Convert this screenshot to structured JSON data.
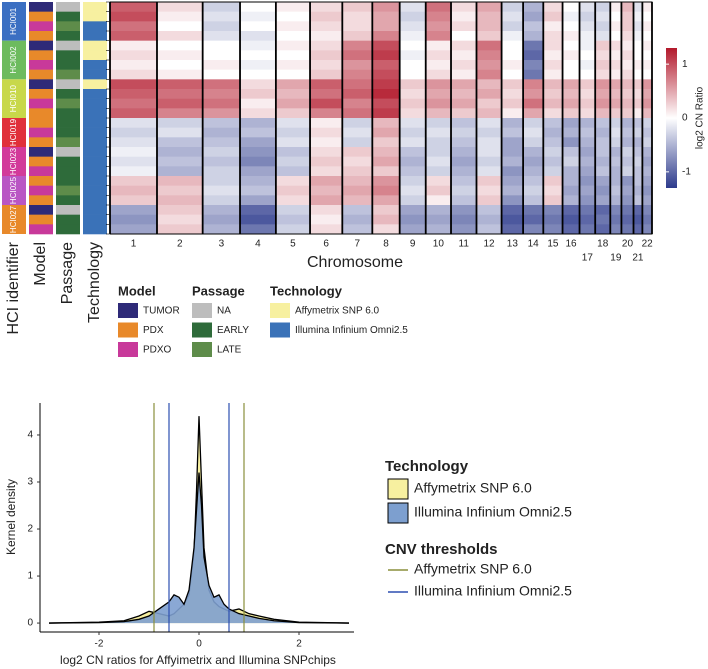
{
  "chart_data": [
    {
      "type": "heatmap",
      "x_label": "Chromosome",
      "chromosomes": [
        "1",
        "2",
        "3",
        "4",
        "5",
        "6",
        "7",
        "8",
        "9",
        "10",
        "11",
        "12",
        "13",
        "14",
        "15",
        "16",
        "17",
        "18",
        "19",
        "20",
        "21",
        "22"
      ],
      "chromosome_sizes": [
        249,
        242,
        198,
        190,
        181,
        171,
        159,
        145,
        138,
        134,
        135,
        133,
        114,
        107,
        102,
        90,
        83,
        80,
        59,
        64,
        47,
        51
      ],
      "annotation_titles": [
        "HCI identifier",
        "Model",
        "Passage",
        "Technology"
      ],
      "groups": [
        {
          "label": "HCI001",
          "color": "#3b6fc2",
          "rows": 4
        },
        {
          "label": "HCI002",
          "color": "#6dbb5e",
          "rows": 4
        },
        {
          "label": "HCI010",
          "color": "#c8d84a",
          "rows": 4
        },
        {
          "label": "HCI019",
          "color": "#e0303a",
          "rows": 3
        },
        {
          "label": "HCI023",
          "color": "#d23a9a",
          "rows": 3
        },
        {
          "label": "HCI025",
          "color": "#b956c4",
          "rows": 3
        },
        {
          "label": "HCI027",
          "color": "#e8892a",
          "rows": 3
        }
      ],
      "row_model": [
        "TUMOR",
        "PDX",
        "PDXO",
        "PDX",
        "TUMOR",
        "PDX",
        "PDXO",
        "PDX",
        "TUMOR",
        "PDX",
        "PDXO",
        "PDX",
        "PDX",
        "PDXO",
        "PDX",
        "TUMOR",
        "PDX",
        "PDXO",
        "PDX",
        "PDXO",
        "PDX",
        "TUMOR",
        "PDX",
        "PDXO"
      ],
      "row_passage": [
        "NA",
        "EARLY",
        "LATE",
        "EARLY",
        "NA",
        "EARLY",
        "EARLY",
        "LATE",
        "NA",
        "EARLY",
        "LATE",
        "EARLY",
        "EARLY",
        "EARLY",
        "LATE",
        "NA",
        "EARLY",
        "EARLY",
        "EARLY",
        "LATE",
        "EARLY",
        "NA",
        "EARLY",
        "EARLY"
      ],
      "row_technology": [
        "Affymetrix SNP 6.0",
        "Affymetrix SNP 6.0",
        "Illumina Infinium Omni2.5",
        "Illumina Infinium Omni2.5",
        "Affymetrix SNP 6.0",
        "Affymetrix SNP 6.0",
        "Illumina Infinium Omni2.5",
        "Illumina Infinium Omni2.5",
        "Affymetrix SNP 6.0",
        "Illumina Infinium Omni2.5",
        "Illumina Infinium Omni2.5",
        "Illumina Infinium Omni2.5",
        "Illumina Infinium Omni2.5",
        "Illumina Infinium Omni2.5",
        "Illumina Infinium Omni2.5",
        "Illumina Infinium Omni2.5",
        "Illumina Infinium Omni2.5",
        "Illumina Infinium Omni2.5",
        "Illumina Infinium Omni2.5",
        "Illumina Infinium Omni2.5",
        "Illumina Infinium Omni2.5",
        "Illumina Infinium Omni2.5",
        "Illumina Infinium Omni2.5",
        "Illumina Infinium Omni2.5"
      ],
      "values": [
        [
          0.9,
          0.2,
          -0.3,
          0,
          0.1,
          0.2,
          0.3,
          0.6,
          -0.2,
          0.8,
          0.2,
          0.5,
          -0.3,
          -0.5,
          0.2,
          0,
          -0.2,
          -0.3,
          0.1,
          0.4,
          -0.2,
          0.1
        ],
        [
          1.0,
          0.1,
          -0.2,
          -0.1,
          0,
          0.3,
          0.2,
          0.5,
          -0.3,
          0.7,
          0.1,
          0.4,
          -0.2,
          -0.6,
          0.3,
          -0.1,
          -0.3,
          -0.2,
          0,
          0.3,
          -0.1,
          0
        ],
        [
          0.8,
          0,
          -0.3,
          0,
          0.1,
          0.2,
          0.2,
          0.5,
          -0.2,
          0.6,
          0.2,
          0.4,
          -0.3,
          -0.4,
          0.1,
          0,
          -0.2,
          -0.3,
          0.1,
          0.3,
          -0.2,
          0.1
        ],
        [
          0.9,
          0.2,
          -0.2,
          -0.2,
          0,
          0.1,
          0.3,
          0.7,
          -0.1,
          0.7,
          0,
          0.3,
          -0.1,
          -0.5,
          0.2,
          0.1,
          -0.1,
          -0.2,
          0,
          0.2,
          -0.1,
          0
        ],
        [
          0.1,
          0,
          0,
          -0.1,
          0.1,
          0.2,
          0.7,
          1.0,
          0,
          0.1,
          0.2,
          0.8,
          0,
          -0.9,
          0.2,
          0,
          -0.1,
          0.3,
          0.2,
          0.1,
          0,
          0.1
        ],
        [
          0.2,
          0.1,
          0,
          0,
          0,
          0.3,
          0.8,
          1.1,
          -0.1,
          0.2,
          0.1,
          0.7,
          0,
          -1.0,
          0.1,
          0.1,
          0,
          0.2,
          0.1,
          0.2,
          0,
          0
        ],
        [
          0.1,
          0,
          0.1,
          -0.1,
          0.1,
          0.2,
          0.6,
          0.9,
          0,
          0.1,
          0.2,
          0.6,
          0.1,
          -0.8,
          0.2,
          0,
          -0.1,
          0.3,
          0.2,
          0.1,
          0.1,
          0.1
        ],
        [
          0.2,
          0.1,
          0,
          0,
          0,
          0.3,
          0.7,
          1.0,
          0,
          0.2,
          0.1,
          0.7,
          0,
          -0.9,
          0.1,
          0,
          0,
          0.2,
          0.1,
          0.2,
          0,
          0
        ],
        [
          1.0,
          0.9,
          0.8,
          0.2,
          0.5,
          0.9,
          0.8,
          1.1,
          0.3,
          0.6,
          0.5,
          0.4,
          0.3,
          0.7,
          0.4,
          0.5,
          0.3,
          0.6,
          0.5,
          0.4,
          0.3,
          0.6
        ],
        [
          0.9,
          0.8,
          0.7,
          0.3,
          0.4,
          0.8,
          0.9,
          1.2,
          0.2,
          0.5,
          0.4,
          0.5,
          0.2,
          0.6,
          0.3,
          0.4,
          0.2,
          0.5,
          0.4,
          0.3,
          0.2,
          0.5
        ],
        [
          0.8,
          0.9,
          0.8,
          0.1,
          0.5,
          1.0,
          0.7,
          1.0,
          0.3,
          0.6,
          0.5,
          0.3,
          0.3,
          0.8,
          0.4,
          0.5,
          0.3,
          0.6,
          0.5,
          0.4,
          0.3,
          0.6
        ],
        [
          0.9,
          0.7,
          0.6,
          0.2,
          0.3,
          0.7,
          0.8,
          1.1,
          0.2,
          0.4,
          0.3,
          0.4,
          0.1,
          0.5,
          0.2,
          0.3,
          0.2,
          0.4,
          0.3,
          0.3,
          0.1,
          0.4
        ],
        [
          -0.2,
          -0.3,
          -0.4,
          -0.5,
          -0.2,
          0.1,
          -0.3,
          0.4,
          -0.2,
          -0.3,
          -0.4,
          -0.2,
          -0.5,
          -0.3,
          -0.4,
          -0.6,
          -0.5,
          -0.4,
          -0.3,
          -0.5,
          -0.4,
          -0.3
        ],
        [
          -0.3,
          -0.2,
          -0.5,
          -0.4,
          -0.3,
          0.2,
          -0.2,
          0.5,
          -0.3,
          -0.2,
          -0.3,
          -0.3,
          -0.4,
          -0.2,
          -0.5,
          -0.5,
          -0.4,
          -0.5,
          -0.2,
          -0.4,
          -0.3,
          -0.4
        ],
        [
          -0.2,
          -0.4,
          -0.4,
          -0.6,
          -0.2,
          0.1,
          -0.3,
          0.3,
          -0.2,
          -0.3,
          -0.4,
          -0.2,
          -0.6,
          -0.3,
          -0.4,
          -0.7,
          -0.5,
          -0.4,
          -0.3,
          -0.5,
          -0.5,
          -0.3
        ],
        [
          -0.1,
          -0.5,
          -0.3,
          -0.7,
          -0.4,
          0.2,
          0.3,
          0.4,
          -0.4,
          -0.3,
          -0.5,
          -0.2,
          -0.6,
          -0.5,
          -0.3,
          -0.4,
          -0.6,
          -0.4,
          -0.5,
          -0.3,
          -0.4,
          -0.5
        ],
        [
          -0.2,
          -0.4,
          -0.4,
          -0.8,
          -0.3,
          0.3,
          0.2,
          0.5,
          -0.5,
          -0.2,
          -0.6,
          -0.3,
          -0.5,
          -0.6,
          -0.4,
          -0.3,
          -0.5,
          -0.5,
          -0.4,
          -0.4,
          -0.3,
          -0.6
        ],
        [
          -0.1,
          -0.5,
          -0.3,
          -0.6,
          -0.4,
          0.2,
          0.3,
          0.3,
          -0.4,
          -0.3,
          -0.5,
          -0.2,
          -0.7,
          -0.5,
          -0.3,
          -0.5,
          -0.6,
          -0.4,
          -0.5,
          -0.3,
          -0.4,
          -0.5
        ],
        [
          0.3,
          0.4,
          -0.3,
          -0.5,
          0.2,
          0.5,
          0.4,
          0.6,
          -0.3,
          0.2,
          -0.4,
          0.3,
          -0.6,
          -0.4,
          0.3,
          -0.5,
          -0.7,
          -0.6,
          -0.5,
          -0.7,
          -0.4,
          -0.6
        ],
        [
          0.4,
          0.3,
          -0.2,
          -0.4,
          0.3,
          0.4,
          0.5,
          0.7,
          -0.2,
          0.3,
          -0.3,
          0.2,
          -0.5,
          -0.3,
          0.2,
          -0.6,
          -0.6,
          -0.7,
          -0.4,
          -0.6,
          -0.5,
          -0.7
        ],
        [
          0.3,
          0.4,
          -0.3,
          -0.6,
          0.2,
          0.5,
          0.4,
          0.5,
          -0.3,
          0.1,
          -0.4,
          0.3,
          -0.7,
          -0.4,
          0.3,
          -0.5,
          -0.7,
          -0.6,
          -0.5,
          -0.7,
          -0.4,
          -0.6
        ],
        [
          -0.6,
          0.3,
          -0.5,
          -1.0,
          -0.3,
          0.2,
          -0.4,
          0.3,
          -0.6,
          -0.5,
          -0.7,
          -0.4,
          -1.0,
          -0.9,
          -0.8,
          -1.0,
          -0.9,
          -1.0,
          -0.8,
          -0.9,
          -1.0,
          -0.8
        ],
        [
          -0.7,
          0.2,
          -0.6,
          -1.1,
          -0.4,
          0.1,
          -0.5,
          0.4,
          -0.7,
          -0.6,
          -0.8,
          -0.5,
          -1.1,
          -1.0,
          -0.9,
          -1.1,
          -1.0,
          -0.9,
          -0.9,
          -1.0,
          -1.1,
          -0.9
        ],
        [
          -0.6,
          0.3,
          -0.5,
          -0.9,
          -0.3,
          0.2,
          -0.4,
          0.2,
          -0.6,
          -0.5,
          -0.7,
          -0.4,
          -1.0,
          -0.8,
          -0.8,
          -1.0,
          -0.9,
          -1.0,
          -0.8,
          -0.9,
          -1.0,
          -0.8
        ]
      ],
      "colorbar_label": "log2 CN Ratio",
      "colorscale": [
        "#2c3a8c",
        "#ffffff",
        "#b2182b"
      ],
      "clim": [
        -1.3,
        1.3
      ],
      "cticks": [
        {
          "value": -1,
          "label": "-1"
        },
        0,
        1
      ],
      "legends": [
        {
          "title": "Model",
          "items": [
            {
              "label": "TUMOR",
              "color": "#2e2a78"
            },
            {
              "label": "PDX",
              "color": "#e8892a"
            },
            {
              "label": "PDXO",
              "color": "#c8399a"
            }
          ]
        },
        {
          "title": "Passage",
          "items": [
            {
              "label": "NA",
              "color": "#bdbdbd"
            },
            {
              "label": "EARLY",
              "color": "#2e6b3a"
            },
            {
              "label": "LATE",
              "color": "#5e8c4a"
            }
          ]
        },
        {
          "title": "Technology",
          "items": [
            {
              "label": "Affymetrix SNP 6.0",
              "color": "#f7f0a0"
            },
            {
              "label": "Illumina Infinium Omni2.5",
              "color": "#3a72b8"
            }
          ]
        }
      ]
    },
    {
      "type": "density",
      "x_label": "log2 CN ratios for Affyimetrix and Illumina SNPchips",
      "y_label": "Kernel density",
      "x": [
        -3,
        -2,
        -1.5,
        -1.2,
        -1,
        -0.8,
        -0.6,
        -0.5,
        -0.4,
        -0.3,
        -0.2,
        -0.1,
        -0.05,
        0,
        0.05,
        0.1,
        0.2,
        0.3,
        0.4,
        0.5,
        0.6,
        0.8,
        1,
        1.2,
        1.5,
        2,
        3
      ],
      "series": [
        {
          "name": "Affymetrix SNP 6.0",
          "color": "#f7f0a0",
          "values": [
            0,
            0.02,
            0.05,
            0.15,
            0.25,
            0.2,
            0.15,
            0.2,
            0.3,
            0.4,
            0.6,
            1.5,
            2.8,
            4.4,
            3.0,
            1.6,
            0.7,
            0.45,
            0.35,
            0.3,
            0.25,
            0.3,
            0.2,
            0.15,
            0.08,
            0.02,
            0
          ]
        },
        {
          "name": "Illumina Infinium Omni2.5",
          "color": "#7d9fcf",
          "values": [
            0,
            0.01,
            0.03,
            0.08,
            0.15,
            0.3,
            0.45,
            0.6,
            0.55,
            0.4,
            0.7,
            1.6,
            2.4,
            3.2,
            2.5,
            1.4,
            0.8,
            0.55,
            0.6,
            0.4,
            0.3,
            0.2,
            0.15,
            0.1,
            0.05,
            0.01,
            0
          ]
        }
      ],
      "legend_title": "Technology",
      "threshold_title": "CNV thresholds",
      "thresholds": [
        {
          "name": "Affymetrix SNP 6.0",
          "color": "#8a8f3c",
          "values": [
            -0.9,
            0.9
          ]
        },
        {
          "name": "Illumina Infinium Omni2.5",
          "color": "#2d4fb0",
          "values": [
            -0.6,
            0.6
          ]
        }
      ],
      "xlim": [
        -3.1,
        3.1
      ],
      "xticks": [
        {
          "value": -2,
          "label": "-2"
        },
        0,
        2
      ],
      "ylim": [
        -0.19,
        4.68
      ],
      "yticks": [
        0,
        1,
        2,
        3,
        4
      ]
    }
  ]
}
